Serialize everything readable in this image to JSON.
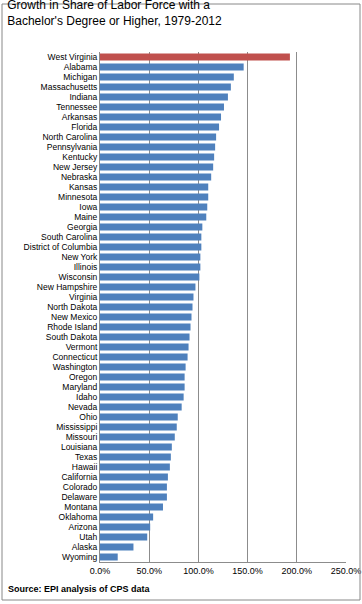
{
  "chart_data": {
    "type": "bar",
    "orientation": "horizontal",
    "title": "Growth in Share of Labor Force with a Bachelor's Degree or Higher, 1979-2012",
    "annotations": [
      "Source: EPI analysis of CPS data"
    ],
    "categories": [
      "West Virginia",
      "Alabama",
      "Michigan",
      "Massachusetts",
      "Indiana",
      "Tennessee",
      "Arkansas",
      "Florida",
      "North Carolina",
      "Pennsylvania",
      "Kentucky",
      "New Jersey",
      "Nebraska",
      "Kansas",
      "Minnesota",
      "Iowa",
      "Maine",
      "Georgia",
      "South Carolina",
      "District of Columbia",
      "New York",
      "Illinois",
      "Wisconsin",
      "New Hampshire",
      "Virginia",
      "North Dakota",
      "New Mexico",
      "Rhode Island",
      "South Dakota",
      "Vermont",
      "Connecticut",
      "Washington",
      "Oregon",
      "Maryland",
      "Idaho",
      "Nevada",
      "Ohio",
      "Mississippi",
      "Missouri",
      "Louisiana",
      "Texas",
      "Hawaii",
      "California",
      "Colorado",
      "Delaware",
      "Montana",
      "Oklahoma",
      "Arizona",
      "Utah",
      "Alaska",
      "Wyoming"
    ],
    "values": [
      193,
      146,
      136,
      133,
      130,
      126,
      123,
      121,
      118,
      117,
      116,
      115,
      113,
      110,
      110,
      109,
      108,
      104,
      103,
      103,
      102,
      102,
      101,
      97,
      95,
      94,
      93,
      92,
      91,
      90,
      89,
      87,
      86,
      86,
      85,
      83,
      79,
      78,
      76,
      73,
      72,
      71,
      69,
      68,
      68,
      64,
      54,
      51,
      48,
      34,
      18
    ],
    "colors": [
      "#c0504d",
      "#4f81bd",
      "#4f81bd",
      "#4f81bd",
      "#4f81bd",
      "#4f81bd",
      "#4f81bd",
      "#4f81bd",
      "#4f81bd",
      "#4f81bd",
      "#4f81bd",
      "#4f81bd",
      "#4f81bd",
      "#4f81bd",
      "#4f81bd",
      "#4f81bd",
      "#4f81bd",
      "#4f81bd",
      "#4f81bd",
      "#4f81bd",
      "#4f81bd",
      "#4f81bd",
      "#4f81bd",
      "#4f81bd",
      "#4f81bd",
      "#4f81bd",
      "#4f81bd",
      "#4f81bd",
      "#4f81bd",
      "#4f81bd",
      "#4f81bd",
      "#4f81bd",
      "#4f81bd",
      "#4f81bd",
      "#4f81bd",
      "#4f81bd",
      "#4f81bd",
      "#4f81bd",
      "#4f81bd",
      "#4f81bd",
      "#4f81bd",
      "#4f81bd",
      "#4f81bd",
      "#4f81bd",
      "#4f81bd",
      "#4f81bd",
      "#4f81bd",
      "#4f81bd",
      "#4f81bd",
      "#4f81bd",
      "#4f81bd"
    ],
    "xlim": [
      0,
      250
    ],
    "xticks": [
      {
        "value": 0,
        "label": "0.0%"
      },
      {
        "value": 50,
        "label": "50.0%"
      },
      {
        "value": 100,
        "label": "100.0%"
      },
      {
        "value": 150,
        "label": "150.0%"
      },
      {
        "value": 200,
        "label": "200.0%"
      },
      {
        "value": 250,
        "label": "250.0%"
      }
    ],
    "grid": true
  }
}
